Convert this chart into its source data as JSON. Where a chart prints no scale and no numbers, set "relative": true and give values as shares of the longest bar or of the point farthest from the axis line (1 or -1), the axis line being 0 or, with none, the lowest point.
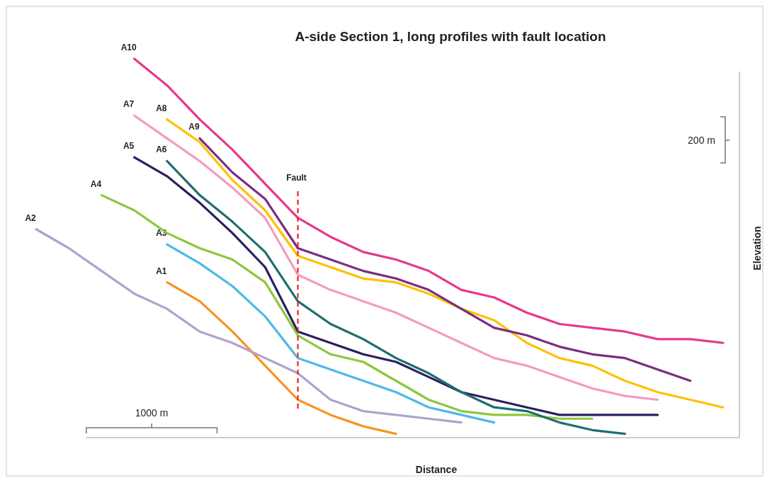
{
  "chart_data": {
    "type": "line",
    "title": "A-side Section 1, long profiles with fault location",
    "xlabel": "Distance",
    "ylabel": "Elevation",
    "relative": true,
    "legend": false,
    "line_style": "solid",
    "marker": "none",
    "categories": [
      null,
      null,
      null,
      null,
      null,
      null,
      null,
      null,
      null,
      null,
      null,
      null,
      null,
      null,
      null,
      null,
      null,
      null,
      null,
      null,
      null,
      null
    ],
    "annotations": [
      "1000 m",
      "200 m",
      "Fault"
    ],
    "series": [
      {
        "name": "A1",
        "color": "#f7941d",
        "values": [
          null,
          null,
          null,
          null,
          0.41,
          0.36,
          0.28,
          0.19,
          0.1,
          0.06,
          0.03,
          0.01,
          null,
          null,
          null,
          null,
          null,
          null,
          null,
          null,
          null,
          null
        ]
      },
      {
        "name": "A2",
        "color": "#b4a0cc",
        "values": [
          0.55,
          0.5,
          0.44,
          0.38,
          0.34,
          0.28,
          0.25,
          0.21,
          0.17,
          0.1,
          0.07,
          0.06,
          0.05,
          0.04,
          null,
          null,
          null,
          null,
          null,
          null,
          null,
          null
        ]
      },
      {
        "name": "A3",
        "color": "#4fb8e8",
        "values": [
          null,
          null,
          null,
          null,
          0.51,
          0.46,
          0.4,
          0.32,
          0.21,
          0.18,
          0.15,
          0.12,
          0.08,
          0.06,
          0.04,
          null,
          null,
          null,
          null,
          null,
          null,
          null
        ]
      },
      {
        "name": "A4",
        "color": "#8dc63f",
        "values": [
          null,
          null,
          0.64,
          0.6,
          0.54,
          0.5,
          0.47,
          0.41,
          0.27,
          0.22,
          0.2,
          0.15,
          0.1,
          0.07,
          0.06,
          0.06,
          0.05,
          0.05,
          null,
          null,
          null,
          null
        ]
      },
      {
        "name": "A5",
        "color": "#2b1f5e",
        "values": [
          null,
          null,
          null,
          0.74,
          0.69,
          0.62,
          0.54,
          0.45,
          0.28,
          0.25,
          0.22,
          0.2,
          0.16,
          0.12,
          0.1,
          0.08,
          0.06,
          0.06,
          0.06,
          0.06,
          null,
          null
        ]
      },
      {
        "name": "A6",
        "color": "#1f6e6e",
        "values": [
          null,
          null,
          null,
          null,
          0.73,
          0.64,
          0.57,
          0.49,
          0.36,
          0.3,
          0.26,
          0.21,
          0.17,
          0.12,
          0.08,
          0.07,
          0.04,
          0.02,
          0.01,
          null,
          null,
          null
        ]
      },
      {
        "name": "A7",
        "color": "#f49ac1",
        "values": [
          null,
          null,
          null,
          0.85,
          0.79,
          0.73,
          0.66,
          0.58,
          0.43,
          0.39,
          0.36,
          0.33,
          0.29,
          0.25,
          0.21,
          0.19,
          0.16,
          0.13,
          0.11,
          0.1,
          null,
          null
        ]
      },
      {
        "name": "A8",
        "color": "#ffc000",
        "values": [
          null,
          null,
          null,
          null,
          0.84,
          0.78,
          0.68,
          0.6,
          0.48,
          0.45,
          0.42,
          0.41,
          0.38,
          0.34,
          0.31,
          0.25,
          0.21,
          0.19,
          0.15,
          0.12,
          0.1,
          0.08
        ]
      },
      {
        "name": "A9",
        "color": "#7b2d7f",
        "values": [
          null,
          null,
          null,
          null,
          null,
          0.79,
          0.7,
          0.63,
          0.5,
          0.47,
          0.44,
          0.42,
          0.39,
          0.34,
          0.29,
          0.27,
          0.24,
          0.22,
          0.21,
          0.18,
          0.15,
          null
        ]
      },
      {
        "name": "A10",
        "color": "#e8388a",
        "values": [
          null,
          null,
          null,
          1.0,
          0.93,
          0.84,
          0.76,
          0.67,
          0.58,
          0.53,
          0.49,
          0.47,
          0.44,
          0.39,
          0.37,
          0.33,
          0.3,
          0.29,
          0.28,
          0.26,
          0.26,
          0.25
        ]
      }
    ]
  }
}
